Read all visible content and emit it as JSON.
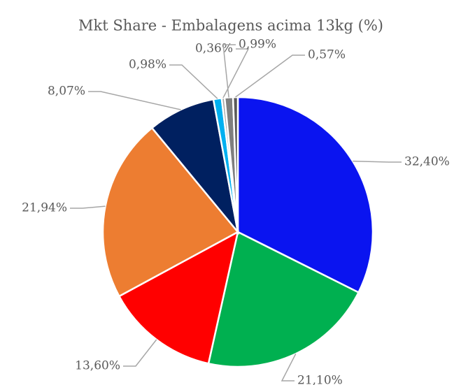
{
  "chart_data": {
    "type": "pie",
    "title": "Mkt Share - Embalagens acima 13kg (%)",
    "series": [
      {
        "values": [
          32.4,
          21.1,
          13.6,
          21.94,
          8.07,
          0.98,
          0.36,
          0.99,
          0.57
        ],
        "value_labels": [
          "32,40%",
          "21,10%",
          "13,60%",
          "21,94%",
          "8,07%",
          "0,98%",
          "0,36%",
          "0,99%",
          "0,57%"
        ],
        "colors": [
          "#0a14f0",
          "#00b050",
          "#ff0000",
          "#ed7d31",
          "#002060",
          "#00b0f0",
          "#a6a6a6",
          "#7f7f7f",
          "#595959"
        ]
      }
    ]
  }
}
